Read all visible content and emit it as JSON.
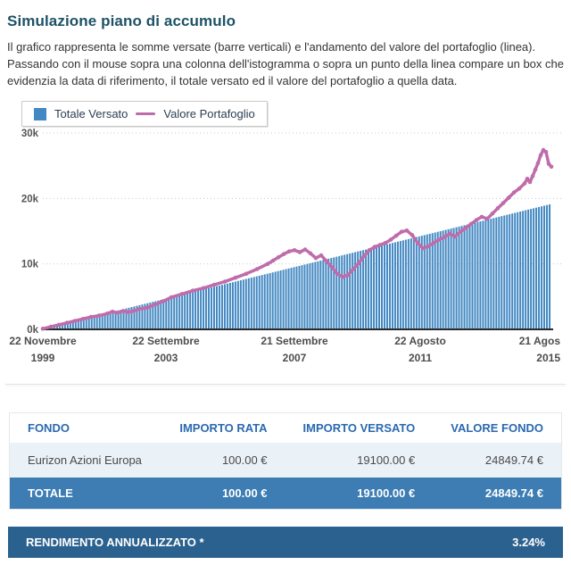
{
  "colors": {
    "title": "#1d5266",
    "bars": "#4288c2",
    "line": "#bf6cab",
    "thead": "#2a69b0",
    "rowbg": "#eaf1f7",
    "totalbg": "#3d7db3",
    "summarybg": "#2b618e"
  },
  "page": {
    "title": "Simulazione piano di accumulo",
    "description": "Il grafico rappresenta le somme versate (barre verticali) e l'andamento del valore del portafoglio (linea). Passando con il mouse sopra una colonna dell'istogramma o sopra un punto della linea compare un box che evidenzia la data di riferimento, il totale versato ed il valore del portafoglio a quella data."
  },
  "legend": {
    "items": [
      {
        "label": "Totale Versato",
        "type": "square"
      },
      {
        "label": "Valore Portafoglio",
        "type": "line"
      }
    ]
  },
  "chart_data": {
    "type": "bar+line",
    "ylabel": "",
    "xlabel": "",
    "ylim_k": [
      0,
      30
    ],
    "grid": "dotted-horizontal",
    "legend_position": "top-left",
    "yticks": [
      {
        "v": 0,
        "label": "0k"
      },
      {
        "v": 10,
        "label": "10k"
      },
      {
        "v": 20,
        "label": "20k"
      },
      {
        "v": 30,
        "label": "30k"
      }
    ],
    "xticks": [
      {
        "m": 0,
        "line1": "22 Novembre",
        "line2": "1999"
      },
      {
        "m": 46,
        "line1": "22 Settembre",
        "line2": "2003"
      },
      {
        "m": 94,
        "line1": "21 Settembre",
        "line2": "2007"
      },
      {
        "m": 141,
        "line1": "22 Agosto",
        "line2": "2011"
      },
      {
        "m": 189,
        "line1": "21 Agos",
        "line2": "2015"
      }
    ],
    "months_total": 190,
    "bars": {
      "name": "Totale Versato",
      "payment_eur": 100,
      "count": 191,
      "start_value_k": 0.1,
      "end_value_k": 19.1
    },
    "line": {
      "name": "Valore Portafoglio",
      "final_value_eur": 24849.74,
      "points_month_valuek": [
        [
          0,
          0.1
        ],
        [
          3,
          0.4
        ],
        [
          6,
          0.7
        ],
        [
          9,
          1.0
        ],
        [
          12,
          1.3
        ],
        [
          15,
          1.6
        ],
        [
          18,
          1.9
        ],
        [
          21,
          2.1
        ],
        [
          24,
          2.4
        ],
        [
          26,
          2.7
        ],
        [
          28,
          2.55
        ],
        [
          30,
          2.8
        ],
        [
          32,
          2.65
        ],
        [
          34,
          2.8
        ],
        [
          36,
          3.1
        ],
        [
          39,
          3.3
        ],
        [
          42,
          3.8
        ],
        [
          45,
          4.3
        ],
        [
          48,
          4.9
        ],
        [
          52,
          5.4
        ],
        [
          56,
          5.9
        ],
        [
          60,
          6.3
        ],
        [
          64,
          6.8
        ],
        [
          68,
          7.3
        ],
        [
          72,
          7.9
        ],
        [
          76,
          8.5
        ],
        [
          80,
          9.2
        ],
        [
          84,
          10.0
        ],
        [
          86,
          10.5
        ],
        [
          88,
          11.0
        ],
        [
          90,
          11.5
        ],
        [
          92,
          11.9
        ],
        [
          94,
          12.1
        ],
        [
          96,
          11.8
        ],
        [
          98,
          12.2
        ],
        [
          100,
          11.6
        ],
        [
          102,
          10.9
        ],
        [
          104,
          11.3
        ],
        [
          106,
          10.4
        ],
        [
          108,
          9.5
        ],
        [
          110,
          8.5
        ],
        [
          112,
          8.0
        ],
        [
          114,
          8.3
        ],
        [
          116,
          9.2
        ],
        [
          118,
          10.1
        ],
        [
          120,
          11.2
        ],
        [
          122,
          12.1
        ],
        [
          124,
          12.6
        ],
        [
          126,
          12.9
        ],
        [
          128,
          13.2
        ],
        [
          130,
          13.7
        ],
        [
          132,
          14.3
        ],
        [
          134,
          14.9
        ],
        [
          136,
          15.1
        ],
        [
          138,
          14.4
        ],
        [
          140,
          13.2
        ],
        [
          142,
          12.4
        ],
        [
          144,
          12.7
        ],
        [
          146,
          13.2
        ],
        [
          148,
          13.7
        ],
        [
          150,
          14.1
        ],
        [
          152,
          14.6
        ],
        [
          154,
          14.2
        ],
        [
          156,
          14.9
        ],
        [
          158,
          15.5
        ],
        [
          160,
          16.1
        ],
        [
          162,
          16.7
        ],
        [
          164,
          17.2
        ],
        [
          166,
          16.9
        ],
        [
          168,
          17.7
        ],
        [
          170,
          18.5
        ],
        [
          172,
          19.3
        ],
        [
          174,
          20.1
        ],
        [
          176,
          20.9
        ],
        [
          178,
          21.5
        ],
        [
          180,
          22.3
        ],
        [
          181,
          23.0
        ],
        [
          182,
          22.5
        ],
        [
          183,
          23.4
        ],
        [
          184,
          24.4
        ],
        [
          185,
          25.4
        ],
        [
          186,
          26.6
        ],
        [
          187,
          27.4
        ],
        [
          188,
          27.1
        ],
        [
          189,
          25.3
        ],
        [
          190,
          24.85
        ]
      ]
    }
  },
  "table": {
    "headers": [
      "FONDO",
      "IMPORTO RATA",
      "IMPORTO VERSATO",
      "VALORE FONDO"
    ],
    "rows": [
      [
        "Eurizon Azioni Europa",
        "100.00 €",
        "19100.00 €",
        "24849.74 €"
      ]
    ],
    "total_row": [
      "TOTALE",
      "100.00 €",
      "19100.00 €",
      "24849.74 €"
    ]
  },
  "summary": {
    "label": "RENDIMENTO ANNUALIZZATO *",
    "value": "3.24%"
  }
}
